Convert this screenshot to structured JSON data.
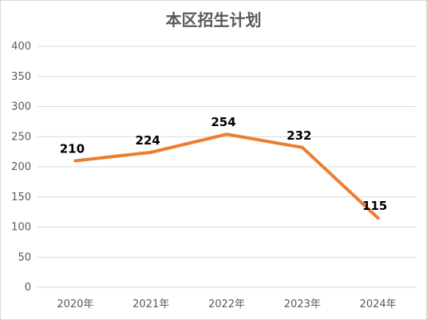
{
  "chart_data": {
    "type": "line",
    "title": "本区招生计划",
    "categories": [
      "2020年",
      "2021年",
      "2022年",
      "2023年",
      "2024年"
    ],
    "series": [
      {
        "values": [
          210,
          224,
          254,
          232,
          115
        ]
      }
    ],
    "ylim": [
      0,
      400
    ],
    "yticks": [
      0,
      50,
      100,
      150,
      200,
      250,
      300,
      350,
      400
    ],
    "grid": true,
    "legend": "none",
    "colors": {
      "line": "#ED7D31",
      "grid": "#d9d9d9",
      "axis_text": "#595959"
    }
  }
}
